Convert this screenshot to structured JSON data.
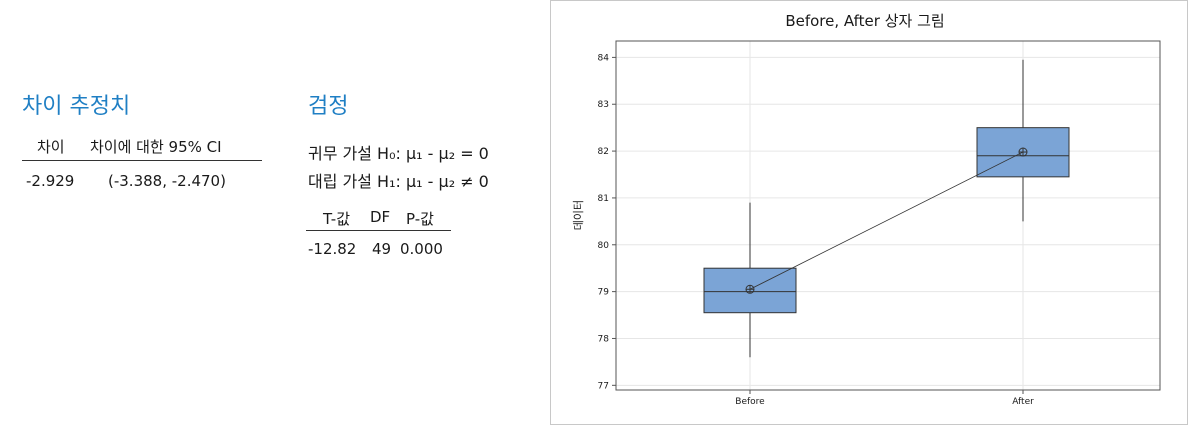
{
  "estimate": {
    "title": "차이 추정치",
    "col_diff": "차이",
    "col_ci": "차이에 대한 95% CI",
    "val_diff": "-2.929",
    "val_ci": "(-3.388, -2.470)"
  },
  "test": {
    "title": "검정",
    "null_hypothesis": "귀무 가설 H₀: μ₁ - μ₂ = 0",
    "alt_hypothesis": "대립 가설 H₁: μ₁ - μ₂ ≠ 0",
    "col_t": "T-값",
    "col_df": "DF",
    "col_p": "P-값",
    "val_t": "-12.82",
    "val_df": "49",
    "val_p": "0.000"
  },
  "chart_data": {
    "type": "boxplot",
    "title": "Before, After 상자 그림",
    "xlabel": "",
    "ylabel": "데이터",
    "ylim": [
      76.9,
      84.35
    ],
    "yticks": [
      77,
      78,
      79,
      80,
      81,
      82,
      83,
      84
    ],
    "categories": [
      "Before",
      "After"
    ],
    "boxes": [
      {
        "category": "Before",
        "whisker_low": 77.6,
        "q1": 78.55,
        "median": 79.0,
        "q3": 79.5,
        "whisker_high": 80.9,
        "mean": 79.05
      },
      {
        "category": "After",
        "whisker_low": 80.5,
        "q1": 81.45,
        "median": 81.9,
        "q3": 82.5,
        "whisker_high": 83.95,
        "mean": 81.98
      }
    ],
    "mean_connect_line": true,
    "grid": true,
    "box_color": "#7ba4d6",
    "grid_color": "#e6e6e6"
  }
}
